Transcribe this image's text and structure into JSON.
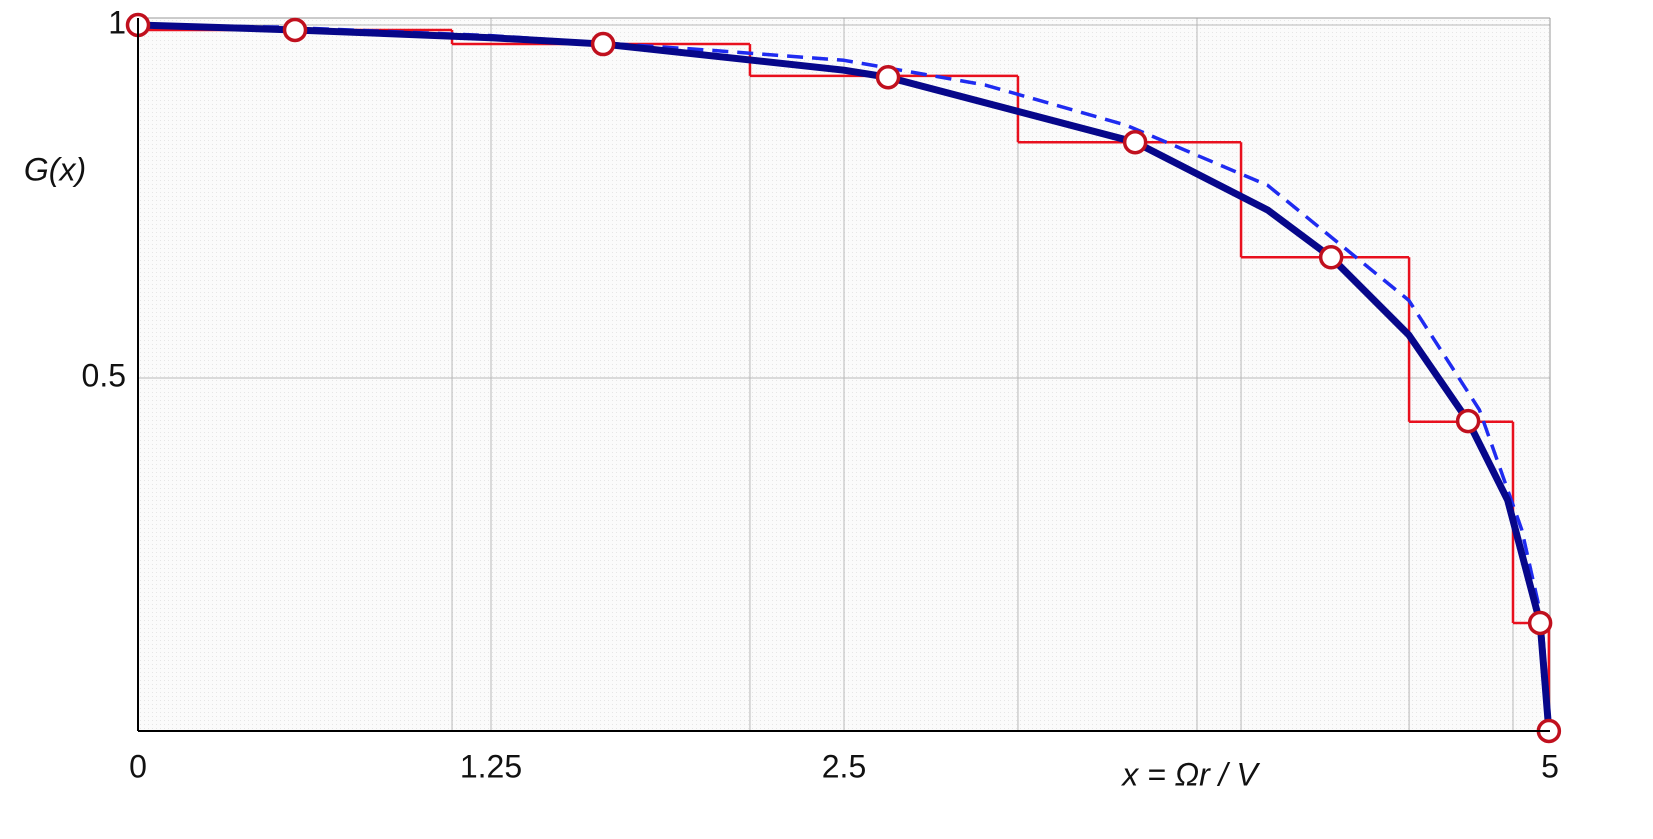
{
  "chart_data": {
    "type": "line",
    "ylabel": "G(x)",
    "xlabel": "x = Ωr / V",
    "xlim": [
      0,
      5
    ],
    "ylim": [
      0,
      1.01
    ],
    "xticks": [
      0,
      1.25,
      2.5,
      {
        "value": 3.75,
        "label": null
      },
      5
    ],
    "yticks": [
      0.5,
      1
    ],
    "grid": true,
    "series": [
      {
        "kind": "dashed",
        "color": "#1f2bf0",
        "x": [
          0,
          0.5,
          1.25,
          2.0,
          2.5,
          3.0,
          3.5,
          4.0,
          4.5,
          4.75,
          4.9,
          4.97,
          5
        ],
        "values": [
          1,
          0.997,
          0.985,
          0.965,
          0.95,
          0.915,
          0.858,
          0.773,
          0.61,
          0.455,
          0.285,
          0.16,
          0
        ]
      },
      {
        "kind": "solid",
        "color": "#07078a",
        "x": [
          0,
          0.556,
          1.25,
          1.647,
          2.5,
          2.656,
          3.531,
          4.0,
          4.225,
          4.5,
          4.71,
          4.85,
          4.965,
          4.996
        ],
        "values": [
          1,
          0.993,
          0.982,
          0.973,
          0.936,
          0.926,
          0.834,
          0.738,
          0.671,
          0.561,
          0.439,
          0.327,
          0.153,
          0
        ]
      },
      {
        "kind": "step",
        "color": "#e8101e",
        "edges": [
          0,
          1.112,
          2.167,
          3.116,
          3.906,
          4.501,
          4.869,
          4.996
        ],
        "values": [
          0.993,
          0.973,
          0.928,
          0.834,
          0.671,
          0.438,
          0.153
        ]
      },
      {
        "kind": "markers",
        "color": "#c0101e",
        "x": [
          0,
          0.556,
          1.647,
          2.656,
          3.531,
          4.225,
          4.71,
          4.965,
          4.996
        ],
        "values": [
          1,
          0.993,
          0.973,
          0.926,
          0.834,
          0.671,
          0.439,
          0.153,
          0
        ]
      }
    ]
  }
}
